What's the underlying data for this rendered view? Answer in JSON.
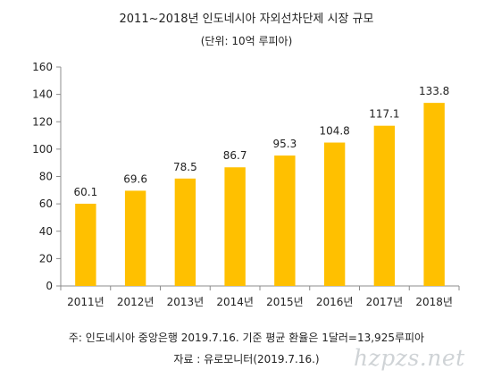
{
  "chart_data": {
    "type": "bar",
    "title": "2011~2018년 인도네시아 자외선차단제 시장 규모",
    "subtitle": "(단위: 10억 루피아)",
    "categories": [
      "2011년",
      "2012년",
      "2013년",
      "2014년",
      "2015년",
      "2016년",
      "2017년",
      "2018년"
    ],
    "series": [
      {
        "values": [
          60.1,
          69.6,
          78.5,
          86.7,
          95.3,
          104.8,
          117.1,
          133.8
        ]
      }
    ],
    "data_labels": [
      "60.1",
      "69.6",
      "78.5",
      "86.7",
      "95.3",
      "104.8",
      "117.1",
      "133.8"
    ],
    "y_ticks": [
      0,
      20,
      40,
      60,
      80,
      100,
      120,
      140,
      160
    ],
    "ylim": [
      0,
      160
    ],
    "xlabel": "",
    "ylabel": "",
    "grid": false,
    "legend": "none",
    "colors": {
      "bar": "#FFC000",
      "axis": "#8c8c8c"
    }
  },
  "notes": {
    "source_note": "주: 인도네시아 중앙은행 2019.7.16. 기준 평균 환율은 1달러=13,925루피아",
    "source": "자료 : 유로모니터(2019.7.16.)"
  },
  "watermark": "hzpzs.net"
}
